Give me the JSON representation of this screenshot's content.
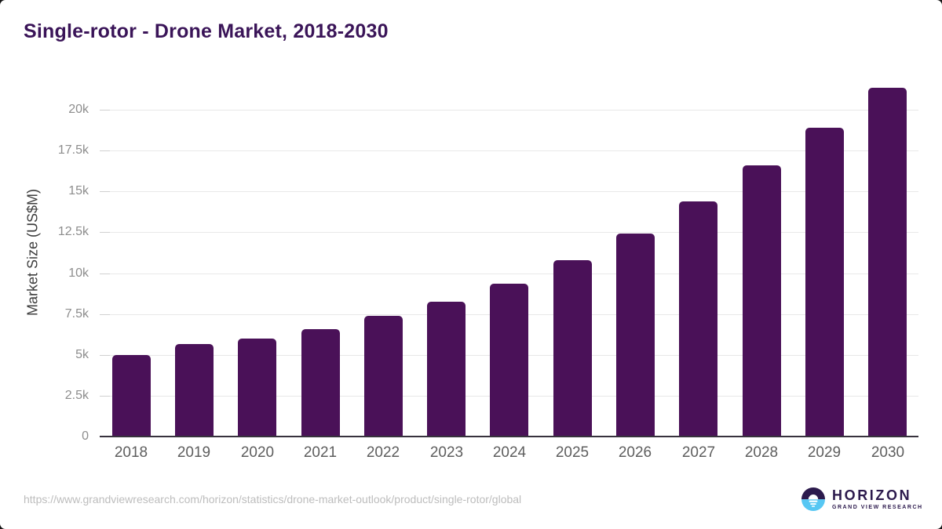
{
  "chart_data": {
    "type": "bar",
    "title": "Single-rotor - Drone Market, 2018-2030",
    "xlabel": "",
    "ylabel": "Market Size (US$M)",
    "categories": [
      "2018",
      "2019",
      "2020",
      "2021",
      "2022",
      "2023",
      "2024",
      "2025",
      "2026",
      "2027",
      "2028",
      "2029",
      "2030"
    ],
    "values": [
      5000,
      5640,
      5990,
      6560,
      7400,
      8260,
      9370,
      10800,
      12440,
      14400,
      16600,
      18900,
      21360
    ],
    "ylim": [
      0,
      20000
    ],
    "yticks": [
      0,
      2500,
      5000,
      7500,
      10000,
      12500,
      15000,
      17500,
      20000
    ],
    "ytick_labels": [
      "0",
      "2.5k",
      "5k",
      "7.5k",
      "10k",
      "12.5k",
      "15k",
      "17.5k",
      "20k"
    ],
    "grid": true,
    "legend": false,
    "bar_color": "#4a1158"
  },
  "footer": {
    "source_url": "https://www.grandviewresearch.com/horizon/statistics/drone-market-outlook/product/single-rotor/global",
    "logo": {
      "name": "HORIZON",
      "tagline": "GRAND VIEW RESEARCH"
    }
  },
  "colors": {
    "bar": "#4a1158",
    "title_text": "#3a1458",
    "axis_line": "#37323d",
    "gridline": "#e8e8e8",
    "logo_purple": "#2c1a4d",
    "logo_blue": "#57c7f3"
  }
}
